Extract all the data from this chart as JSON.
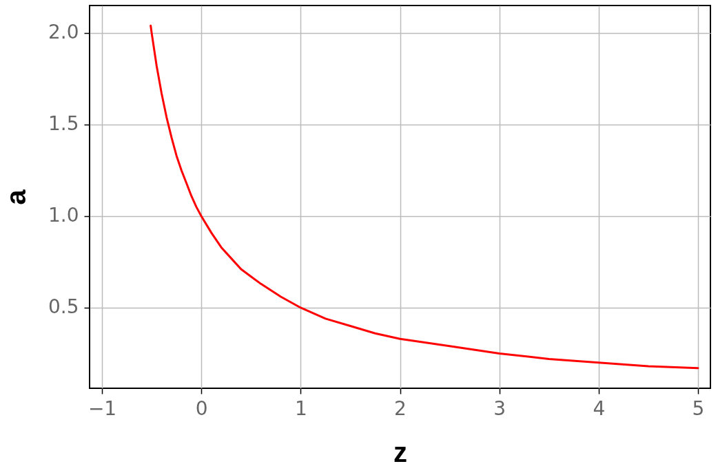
{
  "chart_data": {
    "type": "line",
    "xlabel": "z",
    "ylabel": "a",
    "x": [
      -0.51,
      -0.5,
      -0.45,
      -0.4,
      -0.35,
      -0.3,
      -0.25,
      -0.2,
      -0.15,
      -0.1,
      -0.05,
      0,
      0.1,
      0.2,
      0.3,
      0.4,
      0.5,
      0.6,
      0.8,
      1,
      1.25,
      1.5,
      1.75,
      2,
      2.5,
      3,
      3.5,
      4,
      4.5,
      5
    ],
    "series": [
      {
        "color": "#ff0000",
        "values": [
          2.04,
          2.0,
          1.82,
          1.67,
          1.54,
          1.43,
          1.33,
          1.25,
          1.18,
          1.11,
          1.05,
          1.0,
          0.91,
          0.83,
          0.77,
          0.71,
          0.67,
          0.63,
          0.56,
          0.5,
          0.44,
          0.4,
          0.36,
          0.33,
          0.29,
          0.25,
          0.22,
          0.2,
          0.18,
          0.17
        ]
      }
    ],
    "xlim": [
      -1.125,
      5.125
    ],
    "ylim": [
      0.06,
      2.15
    ],
    "xticks": [
      {
        "value": -1,
        "label": "−1"
      },
      0,
      1,
      2,
      3,
      4,
      5
    ],
    "yticks": [
      {
        "value": 0.5,
        "label": "0.5"
      },
      {
        "value": 1,
        "label": "1.0"
      },
      {
        "value": 1.5,
        "label": "1.5"
      },
      {
        "value": 2,
        "label": "2.0"
      }
    ],
    "grid": true,
    "marker": "none",
    "line_style": "solid"
  }
}
